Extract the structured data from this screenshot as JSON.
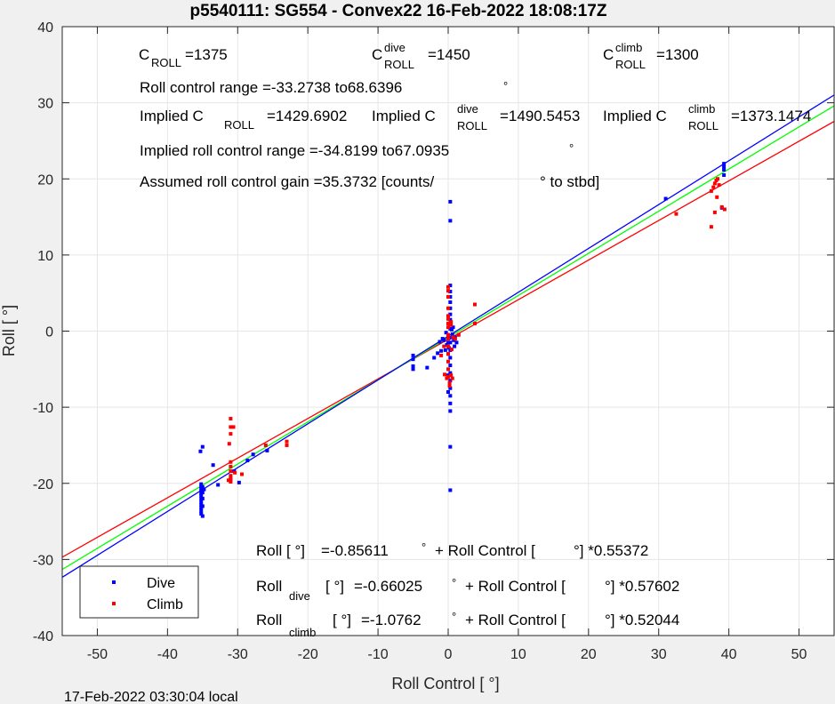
{
  "chart_data": {
    "type": "scatter",
    "title": "p5540111: SG554 - Convex22 16-Feb-2022 18:08:17Z",
    "xlabel": "Roll Control [   °]",
    "ylabel": "Roll [   °]",
    "xlim": [
      -55,
      55
    ],
    "ylim": [
      -40,
      40
    ],
    "xticks": [
      -50,
      -40,
      -30,
      -20,
      -10,
      0,
      10,
      20,
      30,
      40,
      50
    ],
    "yticks": [
      -40,
      -30,
      -20,
      -10,
      0,
      10,
      20,
      30,
      40
    ],
    "grid": true,
    "legend_position": "bottom-left",
    "colors": {
      "dive": "#0000ff",
      "climb": "#ff0000",
      "combined_fit": "#00ff00"
    },
    "series": [
      {
        "name": "Dive",
        "color": "#0000ff",
        "points": [
          [
            -35.2,
            -24.0
          ],
          [
            -35.2,
            -23.6
          ],
          [
            -35.2,
            -23.2
          ],
          [
            -35.2,
            -22.8
          ],
          [
            -35.2,
            -22.4
          ],
          [
            -35.2,
            -22.0
          ],
          [
            -35.2,
            -21.6
          ],
          [
            -35.2,
            -21.3
          ],
          [
            -35.2,
            -21.0
          ],
          [
            -35.2,
            -20.7
          ],
          [
            -35.2,
            -20.4
          ],
          [
            -35.2,
            -20.1
          ],
          [
            -35.0,
            -24.3
          ],
          [
            -35.0,
            -23.0
          ],
          [
            -35.0,
            -22.0
          ],
          [
            -35.0,
            -21.2
          ],
          [
            -35.0,
            -20.5
          ],
          [
            -35.0,
            -15.2
          ],
          [
            -35.3,
            -15.8
          ],
          [
            -34.8,
            -20.8
          ],
          [
            -33.5,
            -17.6
          ],
          [
            -32.8,
            -20.2
          ],
          [
            -31.0,
            -19.5
          ],
          [
            -30.5,
            -18.4
          ],
          [
            -29.8,
            -19.9
          ],
          [
            -28.6,
            -17.0
          ],
          [
            -27.8,
            -16.2
          ],
          [
            -25.8,
            -15.7
          ],
          [
            -5.0,
            -3.2
          ],
          [
            -5.0,
            -3.7
          ],
          [
            -5.0,
            -4.6
          ],
          [
            -5.0,
            -5.0
          ],
          [
            -3.0,
            -4.8
          ],
          [
            -2.0,
            -3.5
          ],
          [
            -1.5,
            -2.9
          ],
          [
            -1.0,
            -2.6
          ],
          [
            -0.6,
            -1.2
          ],
          [
            -0.4,
            -2.5
          ],
          [
            -0.2,
            -1.8
          ],
          [
            0.0,
            -0.5
          ],
          [
            0.0,
            -1.5
          ],
          [
            0.0,
            -3.0
          ],
          [
            0.0,
            -5.8
          ],
          [
            0.0,
            -8.0
          ],
          [
            0.1,
            -2.2
          ],
          [
            0.2,
            -0.9
          ],
          [
            0.3,
            0.3
          ],
          [
            0.3,
            0.9
          ],
          [
            0.3,
            1.5
          ],
          [
            0.3,
            2.2
          ],
          [
            0.3,
            3.0
          ],
          [
            0.3,
            3.8
          ],
          [
            0.3,
            4.5
          ],
          [
            0.3,
            5.2
          ],
          [
            0.3,
            6.0
          ],
          [
            0.3,
            14.5
          ],
          [
            0.3,
            17.0
          ],
          [
            0.3,
            -1.5
          ],
          [
            0.3,
            -2.5
          ],
          [
            0.3,
            -3.5
          ],
          [
            0.3,
            -4.5
          ],
          [
            0.3,
            -5.5
          ],
          [
            0.3,
            -6.5
          ],
          [
            0.3,
            -7.5
          ],
          [
            0.3,
            -8.5
          ],
          [
            0.3,
            -9.5
          ],
          [
            0.3,
            -10.5
          ],
          [
            0.3,
            -15.2
          ],
          [
            0.3,
            -20.9
          ],
          [
            0.6,
            -0.4
          ],
          [
            0.8,
            -1.2
          ],
          [
            1.0,
            -0.8
          ],
          [
            1.2,
            -1.5
          ],
          [
            0.5,
            0.2
          ],
          [
            0.7,
            0.5
          ],
          [
            -0.3,
            -0.2
          ],
          [
            -0.8,
            -1.0
          ],
          [
            -1.2,
            -1.4
          ],
          [
            0.9,
            -2.0
          ],
          [
            31.0,
            17.4
          ],
          [
            39.3,
            20.5
          ],
          [
            39.3,
            21.2
          ],
          [
            39.3,
            21.6
          ],
          [
            39.3,
            22.0
          ],
          [
            39.0,
            16.2
          ]
        ]
      },
      {
        "name": "Climb",
        "color": "#ff0000",
        "points": [
          [
            -31.0,
            -11.5
          ],
          [
            -31.0,
            -12.6
          ],
          [
            -31.0,
            -13.5
          ],
          [
            -30.6,
            -12.6
          ],
          [
            -31.2,
            -14.8
          ],
          [
            -31.0,
            -17.2
          ],
          [
            -31.0,
            -17.8
          ],
          [
            -31.0,
            -18.4
          ],
          [
            -31.0,
            -19.0
          ],
          [
            -31.0,
            -19.4
          ],
          [
            -31.0,
            -19.8
          ],
          [
            -30.4,
            -18.6
          ],
          [
            -31.3,
            -19.6
          ],
          [
            -29.4,
            -18.8
          ],
          [
            -26.0,
            -15.0
          ],
          [
            -23.0,
            -14.5
          ],
          [
            -23.0,
            -15.0
          ],
          [
            0.0,
            5.8
          ],
          [
            0.0,
            5.3
          ],
          [
            0.0,
            4.5
          ],
          [
            0.0,
            3.0
          ],
          [
            0.0,
            2.0
          ],
          [
            0.0,
            1.6
          ],
          [
            0.0,
            1.0
          ],
          [
            0.0,
            0.5
          ],
          [
            0.0,
            -0.5
          ],
          [
            0.0,
            -1.0
          ],
          [
            0.0,
            -2.0
          ],
          [
            0.0,
            -3.0
          ],
          [
            0.0,
            -4.0
          ],
          [
            0.0,
            -5.0
          ],
          [
            0.0,
            -6.0
          ],
          [
            0.2,
            -6.8
          ],
          [
            0.2,
            -7.2
          ],
          [
            0.4,
            -5.8
          ],
          [
            0.6,
            -6.2
          ],
          [
            -0.2,
            -6.2
          ],
          [
            -0.6,
            -2.0
          ],
          [
            -1.0,
            -3.2
          ],
          [
            -0.5,
            -5.7
          ],
          [
            0.5,
            -2.4
          ],
          [
            0.7,
            -0.8
          ],
          [
            1.0,
            -1.0
          ],
          [
            1.5,
            -0.5
          ],
          [
            0.4,
            0.8
          ],
          [
            0.4,
            1.2
          ],
          [
            3.8,
            3.5
          ],
          [
            3.8,
            1.0
          ],
          [
            32.5,
            15.4
          ],
          [
            37.5,
            13.7
          ],
          [
            37.5,
            18.4
          ],
          [
            37.8,
            18.9
          ],
          [
            38.0,
            19.4
          ],
          [
            38.2,
            19.8
          ],
          [
            38.4,
            20.0
          ],
          [
            38.0,
            15.6
          ],
          [
            38.3,
            17.6
          ],
          [
            38.6,
            19.2
          ],
          [
            39.0,
            16.3
          ],
          [
            39.4,
            16.0
          ]
        ]
      }
    ],
    "fits": [
      {
        "name": "Roll",
        "color": "#00ff00",
        "intercept": -0.85611,
        "slope": 0.55372
      },
      {
        "name": "Roll dive",
        "color": "#0000ff",
        "intercept": -0.66025,
        "slope": 0.57602
      },
      {
        "name": "Roll climb",
        "color": "#ff0000",
        "intercept": -1.0762,
        "slope": 0.52044
      }
    ],
    "annotations": {
      "c_roll": {
        "main": "C",
        "sub": "ROLL",
        "value": "=1375"
      },
      "c_roll_dive": {
        "main": "C",
        "sup": "dive",
        "sub": "ROLL",
        "value": "=1450"
      },
      "c_roll_climb": {
        "main": "C",
        "sup": "climb",
        "sub": "ROLL",
        "value": "=1300"
      },
      "roll_control_range": "Roll control range =-33.2738 to68.6396",
      "implied_c_roll": {
        "prefix": "Implied C",
        "sub": "ROLL",
        "value": "=1429.6902"
      },
      "implied_c_roll_dive": {
        "prefix": "Implied C",
        "sup": "dive",
        "sub": "ROLL",
        "value": "=1490.5453"
      },
      "implied_c_roll_climb": {
        "prefix": "Implied C",
        "sup": "climb",
        "sub": "ROLL",
        "value": "=1373.1474"
      },
      "implied_range": "Implied roll control range =-34.8199 to67.0935",
      "gain_pre": "Assumed roll control gain =35.3732 [counts/",
      "gain_post": "° to stbd]",
      "degree_symbol": "°",
      "eq_all": {
        "lhs": "Roll [  °]",
        "mid": "=-0.85611",
        "deg": "°",
        "rhs1": "+ Roll Control [",
        "rhs2": "°] *0.55372"
      },
      "eq_dive": {
        "lhs": "Roll",
        "sub": "dive",
        "br": "[  °]",
        "mid": "=-0.66025",
        "deg": "°",
        "rhs1": "+ Roll Control [",
        "rhs2": "°] *0.57602"
      },
      "eq_climb": {
        "lhs": "Roll",
        "sub": "climb",
        "br": "[  °]",
        "mid": "=-1.0762",
        "deg": "°",
        "rhs1": "+ Roll Control [",
        "rhs2": "°] *0.52044"
      }
    },
    "footer": "17-Feb-2022 03:30:04 local"
  }
}
